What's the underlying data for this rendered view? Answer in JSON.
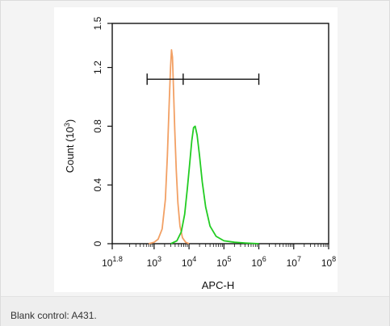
{
  "caption": "Blank control: A431.",
  "colors": {
    "frame_bg": "#f4f4f4",
    "caption_bg": "#eeeeee",
    "blank_series": "#f2a064",
    "sample_series": "#22cc22",
    "axis": "#111111"
  },
  "chart_data": {
    "type": "line",
    "xlabel": "APC-H",
    "ylabel": "Count",
    "ylabel_unit_base": "10",
    "ylabel_unit_exp": "3",
    "xscale": "log",
    "xlim": [
      63.1,
      100000000
    ],
    "ylim": [
      0,
      1.5
    ],
    "x_ticks": [
      {
        "base": "10",
        "exp": "1.8",
        "value": 63.1
      },
      {
        "base": "10",
        "exp": "3",
        "value": 1000
      },
      {
        "base": "10",
        "exp": "4",
        "value": 10000
      },
      {
        "base": "10",
        "exp": "5",
        "value": 100000
      },
      {
        "base": "10",
        "exp": "6",
        "value": 1000000
      },
      {
        "base": "10",
        "exp": "7",
        "value": 10000000
      },
      {
        "base": "10",
        "exp": "8",
        "value": 100000000
      }
    ],
    "y_ticks": [
      "0",
      "0.4",
      "0.8",
      "1.2",
      "1.5"
    ],
    "y_tick_values": [
      0,
      0.4,
      0.8,
      1.2,
      1.5
    ],
    "gate": {
      "x_start": 630,
      "x_mid": 6800,
      "x_end": 1000000,
      "y": 1.12
    },
    "series": [
      {
        "color": "#f2a064",
        "points": [
          [
            700,
            0
          ],
          [
            1000,
            0.01
          ],
          [
            1300,
            0.03
          ],
          [
            1700,
            0.1
          ],
          [
            2100,
            0.3
          ],
          [
            2400,
            0.6
          ],
          [
            2700,
            0.95
          ],
          [
            2950,
            1.2
          ],
          [
            3150,
            1.32
          ],
          [
            3350,
            1.27
          ],
          [
            3600,
            1.05
          ],
          [
            3900,
            0.78
          ],
          [
            4300,
            0.5
          ],
          [
            4800,
            0.28
          ],
          [
            5500,
            0.12
          ],
          [
            6500,
            0.04
          ],
          [
            8000,
            0.01
          ],
          [
            10000,
            0
          ]
        ]
      },
      {
        "color": "#22cc22",
        "points": [
          [
            3000,
            0
          ],
          [
            4500,
            0.02
          ],
          [
            6000,
            0.08
          ],
          [
            7500,
            0.2
          ],
          [
            9000,
            0.38
          ],
          [
            10500,
            0.55
          ],
          [
            12000,
            0.7
          ],
          [
            13500,
            0.79
          ],
          [
            15000,
            0.8
          ],
          [
            17000,
            0.74
          ],
          [
            20000,
            0.6
          ],
          [
            24000,
            0.42
          ],
          [
            30000,
            0.25
          ],
          [
            40000,
            0.12
          ],
          [
            60000,
            0.05
          ],
          [
            100000,
            0.02
          ],
          [
            200000,
            0.01
          ],
          [
            400000,
            0.005
          ],
          [
            1000000,
            0
          ]
        ]
      }
    ]
  }
}
